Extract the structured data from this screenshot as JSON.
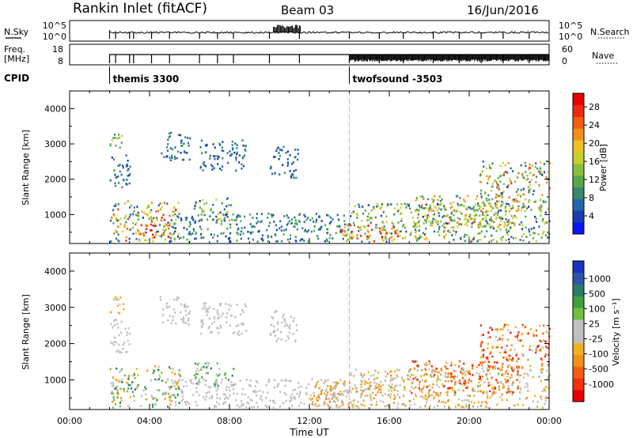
{
  "header": {
    "station": "Rankin Inlet (fitACF)",
    "beam": "Beam 03",
    "date": "16/Jun/2016"
  },
  "sky_panel": {
    "left_label": "N.Sky",
    "left_ticks": [
      "10^5",
      "10^0"
    ],
    "right_label": "N.Search",
    "right_ticks": [
      "10^5",
      "10^0"
    ]
  },
  "freq_panel": {
    "left_label_line1": "Freq.",
    "left_label_line2": "[MHz]",
    "left_ticks": [
      "18",
      "8"
    ],
    "right_label": "Nave",
    "right_ticks": [
      "60",
      "0"
    ]
  },
  "cpid": {
    "label": "CPID",
    "modes": [
      {
        "name": "themis 3300",
        "start_hour": 2.0
      },
      {
        "name": "twofsound -3503",
        "start_hour": 14.0
      }
    ]
  },
  "x_axis": {
    "label": "Time UT",
    "ticks": [
      "00:00",
      "04:00",
      "08:00",
      "12:00",
      "16:00",
      "20:00",
      "00:00"
    ],
    "range_hours": [
      0,
      24
    ]
  },
  "chart_data": [
    {
      "type": "heatmap",
      "panel": "power",
      "ylabel": "Slant Range [km]",
      "yticks": [
        "1000",
        "2000",
        "3000",
        "4000"
      ],
      "ylim": [
        180,
        4500
      ],
      "colorbar": {
        "label": "Power [dB]",
        "ticks": [
          "4",
          "8",
          "12",
          "16",
          "20",
          "24",
          "28"
        ],
        "range": [
          0,
          31
        ],
        "colors": [
          "#0a16f0",
          "#1a3cb0",
          "#2266aa",
          "#3a8a6a",
          "#5aa84a",
          "#8ac040",
          "#c8d030",
          "#f0c020",
          "#f09018",
          "#f06010",
          "#f02a10",
          "#e80000"
        ]
      },
      "echo_regions": [
        {
          "t0": 2.0,
          "t1": 3.0,
          "r0": 1650,
          "r1": 2650,
          "value_range": [
            4,
            10
          ]
        },
        {
          "t0": 2.0,
          "t1": 2.7,
          "r0": 2800,
          "r1": 3300,
          "value_range": [
            8,
            16
          ]
        },
        {
          "t0": 4.5,
          "t1": 6.0,
          "r0": 2500,
          "r1": 3300,
          "value_range": [
            4,
            10
          ]
        },
        {
          "t0": 6.5,
          "t1": 8.8,
          "r0": 2200,
          "r1": 3100,
          "value_range": [
            4,
            10
          ]
        },
        {
          "t0": 10.0,
          "t1": 11.4,
          "r0": 2000,
          "r1": 2900,
          "value_range": [
            4,
            8
          ]
        },
        {
          "t0": 2.0,
          "t1": 5.5,
          "r0": 200,
          "r1": 1350,
          "value_range": [
            4,
            28
          ]
        },
        {
          "t0": 3.3,
          "t1": 5.0,
          "r0": 200,
          "r1": 700,
          "value_range": [
            16,
            30
          ]
        },
        {
          "t0": 6.2,
          "t1": 8.2,
          "r0": 800,
          "r1": 1450,
          "value_range": [
            4,
            20
          ]
        },
        {
          "t0": 5.0,
          "t1": 14.0,
          "r0": 200,
          "r1": 1000,
          "value_range": [
            4,
            12
          ]
        },
        {
          "t0": 14.0,
          "t1": 24.0,
          "r0": 200,
          "r1": 1300,
          "value_range": [
            4,
            20
          ]
        },
        {
          "t0": 13.5,
          "t1": 16.5,
          "r0": 200,
          "r1": 700,
          "value_range": [
            12,
            30
          ]
        },
        {
          "t0": 17.0,
          "t1": 22.5,
          "r0": 600,
          "r1": 1500,
          "value_range": [
            8,
            24
          ]
        },
        {
          "t0": 20.5,
          "t1": 24.0,
          "r0": 1300,
          "r1": 2500,
          "value_range": [
            4,
            26
          ]
        }
      ]
    },
    {
      "type": "heatmap",
      "panel": "velocity",
      "ylabel": "Slant Range [km]",
      "yticks": [
        "1000",
        "2000",
        "3000",
        "4000"
      ],
      "ylim": [
        180,
        4500
      ],
      "colorbar": {
        "label": "Velocity [m s⁻¹]",
        "ticks": [
          "1000",
          "500",
          "100",
          "25",
          "-25",
          "-100",
          "-500",
          "-1000"
        ],
        "range": [
          -1000,
          1000
        ],
        "colors": [
          "#e80000",
          "#f03010",
          "#f06010",
          "#f09018",
          "#f0b020",
          "#c0c0c0",
          "#c0c0c0",
          "#70c040",
          "#40a040",
          "#2c7a6a",
          "#2a58a8",
          "#1a32c0"
        ]
      },
      "echo_regions": [
        {
          "t0": 2.0,
          "t1": 3.0,
          "r0": 1650,
          "r1": 2650,
          "value_range": [
            -20,
            20
          ]
        },
        {
          "t0": 2.0,
          "t1": 2.7,
          "r0": 2800,
          "r1": 3300,
          "value_range": [
            -400,
            -100
          ]
        },
        {
          "t0": 4.5,
          "t1": 6.0,
          "r0": 2500,
          "r1": 3300,
          "value_range": [
            -20,
            20
          ]
        },
        {
          "t0": 6.5,
          "t1": 8.8,
          "r0": 2200,
          "r1": 3100,
          "value_range": [
            -20,
            20
          ]
        },
        {
          "t0": 10.0,
          "t1": 11.4,
          "r0": 2000,
          "r1": 2900,
          "value_range": [
            -20,
            20
          ]
        },
        {
          "t0": 2.0,
          "t1": 5.5,
          "r0": 200,
          "r1": 1350,
          "value_range": [
            -400,
            600
          ]
        },
        {
          "t0": 6.2,
          "t1": 8.2,
          "r0": 800,
          "r1": 1450,
          "value_range": [
            50,
            600
          ]
        },
        {
          "t0": 5.0,
          "t1": 14.0,
          "r0": 200,
          "r1": 1000,
          "value_range": [
            -60,
            40
          ]
        },
        {
          "t0": 12.0,
          "t1": 15.5,
          "r0": 200,
          "r1": 1000,
          "value_range": [
            -500,
            -50
          ]
        },
        {
          "t0": 14.0,
          "t1": 24.0,
          "r0": 200,
          "r1": 1300,
          "value_range": [
            -500,
            200
          ]
        },
        {
          "t0": 17.0,
          "t1": 22.5,
          "r0": 600,
          "r1": 1500,
          "value_range": [
            -900,
            -100
          ]
        },
        {
          "t0": 20.5,
          "t1": 24.0,
          "r0": 1300,
          "r1": 2500,
          "value_range": [
            -900,
            -50
          ]
        }
      ]
    }
  ]
}
